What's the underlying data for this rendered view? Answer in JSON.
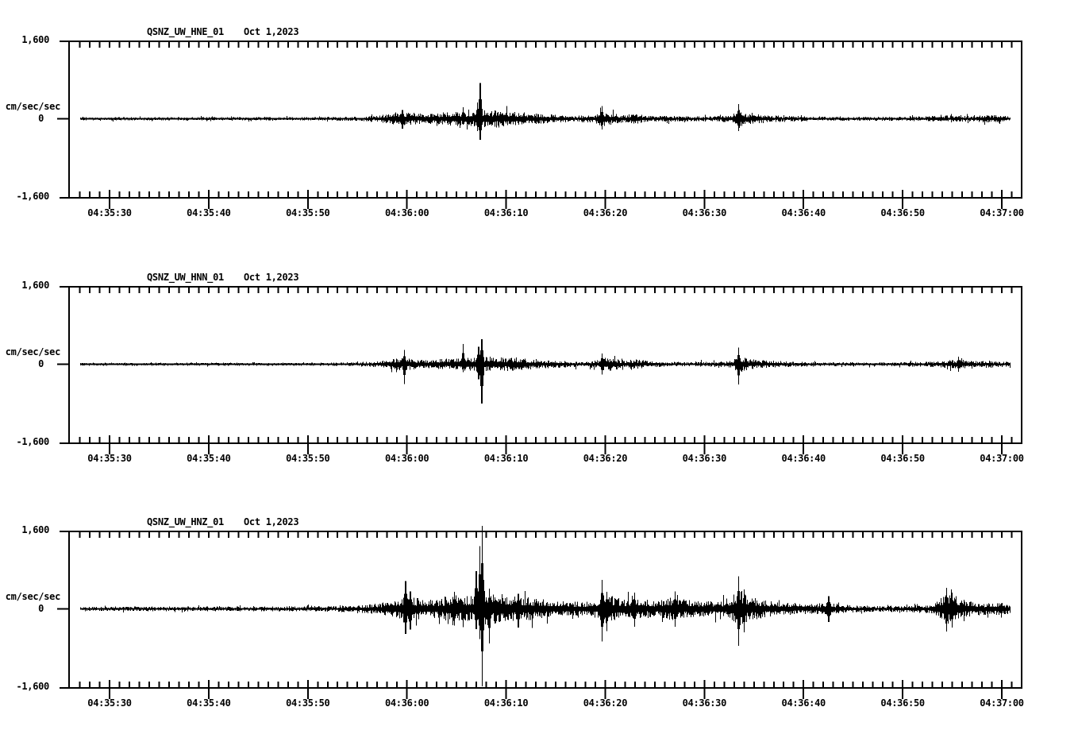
{
  "page": {
    "background": "#ffffff",
    "ink": "#000000"
  },
  "chart_data": [
    {
      "type": "line",
      "subtype": "seismogram",
      "station": "QSNZ_UW_HNE_01",
      "date": "Oct 1,2023",
      "units": "cm/sec/sec",
      "y_labels": {
        "top": "1,600",
        "zero": "0",
        "bottom": "-1,600"
      },
      "ylim": [
        -1600,
        1600
      ],
      "x_tick_labels": [
        "04:35:30",
        "04:35:40",
        "04:35:50",
        "04:36:00",
        "04:36:10",
        "04:36:20",
        "04:36:30",
        "04:36:40",
        "04:36:50",
        "04:37:00"
      ],
      "x_minor_tick_seconds": 1,
      "x_major_tick_seconds": 10,
      "time_window": {
        "start": "04:35:27",
        "end": "04:37:01"
      },
      "seed": 11,
      "envelope_t_amp": [
        [
          27,
          33
        ],
        [
          50,
          35
        ],
        [
          54,
          40
        ],
        [
          56,
          55
        ],
        [
          58,
          95
        ],
        [
          59.4,
          160
        ],
        [
          60.3,
          130
        ],
        [
          61.5,
          102
        ],
        [
          63,
          115
        ],
        [
          64.6,
          150
        ],
        [
          65.7,
          138
        ],
        [
          66.6,
          152
        ],
        [
          67.3,
          205
        ],
        [
          68.2,
          172
        ],
        [
          69.4,
          182
        ],
        [
          70.6,
          148
        ],
        [
          72,
          125
        ],
        [
          73.5,
          105
        ],
        [
          75,
          85
        ],
        [
          77,
          66
        ],
        [
          78.8,
          76
        ],
        [
          79.6,
          172
        ],
        [
          80.7,
          112
        ],
        [
          81.9,
          76
        ],
        [
          82.9,
          108
        ],
        [
          84.1,
          76
        ],
        [
          85.6,
          58
        ],
        [
          87,
          62
        ],
        [
          88.6,
          50
        ],
        [
          90.6,
          56
        ],
        [
          92.7,
          76
        ],
        [
          93.4,
          195
        ],
        [
          94.4,
          108
        ],
        [
          95.8,
          88
        ],
        [
          97,
          72
        ],
        [
          99,
          58
        ],
        [
          101,
          50
        ],
        [
          103,
          46
        ],
        [
          106,
          40
        ],
        [
          109,
          44
        ],
        [
          112,
          54
        ],
        [
          114,
          66
        ],
        [
          115.3,
          72
        ],
        [
          116.5,
          62
        ],
        [
          117.6,
          68
        ],
        [
          118.6,
          82
        ],
        [
          119.6,
          70
        ],
        [
          120.6,
          58
        ],
        [
          121,
          46
        ]
      ],
      "spikes": [
        {
          "t": 59.5,
          "up": 175,
          "down": 205
        },
        {
          "t": 65.62,
          "up": 235,
          "down": 125
        },
        {
          "t": 67.1,
          "up": 330,
          "down": 250
        },
        {
          "t": 67.35,
          "up": 730,
          "down": 430
        },
        {
          "t": 79.62,
          "up": 258,
          "down": 222
        },
        {
          "t": 93.42,
          "up": 302,
          "down": 252
        }
      ]
    },
    {
      "type": "line",
      "subtype": "seismogram",
      "station": "QSNZ_UW_HNN_01",
      "date": "Oct 1,2023",
      "units": "cm/sec/sec",
      "y_labels": {
        "top": "1,600",
        "zero": "0",
        "bottom": "-1,600"
      },
      "ylim": [
        -1600,
        1600
      ],
      "x_tick_labels": [
        "04:35:30",
        "04:35:40",
        "04:35:50",
        "04:36:00",
        "04:36:10",
        "04:36:20",
        "04:36:30",
        "04:36:40",
        "04:36:50",
        "04:37:00"
      ],
      "x_minor_tick_seconds": 1,
      "x_major_tick_seconds": 10,
      "time_window": {
        "start": "04:35:27",
        "end": "04:37:01"
      },
      "seed": 22,
      "envelope_t_amp": [
        [
          27,
          30
        ],
        [
          50,
          32
        ],
        [
          54,
          38
        ],
        [
          56,
          50
        ],
        [
          58,
          86
        ],
        [
          59.5,
          148
        ],
        [
          60.4,
          116
        ],
        [
          62,
          96
        ],
        [
          63.5,
          112
        ],
        [
          65,
          132
        ],
        [
          66.2,
          140
        ],
        [
          67.4,
          182
        ],
        [
          68.3,
          164
        ],
        [
          69.5,
          154
        ],
        [
          71,
          126
        ],
        [
          72.5,
          112
        ],
        [
          74,
          88
        ],
        [
          76,
          66
        ],
        [
          78,
          56
        ],
        [
          79.3,
          86
        ],
        [
          79.9,
          168
        ],
        [
          81,
          112
        ],
        [
          82,
          72
        ],
        [
          83,
          108
        ],
        [
          84.2,
          72
        ],
        [
          86,
          52
        ],
        [
          88,
          46
        ],
        [
          90.5,
          56
        ],
        [
          92.8,
          68
        ],
        [
          93.5,
          200
        ],
        [
          94.4,
          112
        ],
        [
          95.8,
          86
        ],
        [
          97,
          70
        ],
        [
          99,
          56
        ],
        [
          101,
          46
        ],
        [
          103.5,
          40
        ],
        [
          106,
          38
        ],
        [
          109,
          42
        ],
        [
          112,
          50
        ],
        [
          114,
          70
        ],
        [
          115.3,
          96
        ],
        [
          116.4,
          84
        ],
        [
          117.5,
          68
        ],
        [
          118.6,
          72
        ],
        [
          119.6,
          62
        ],
        [
          120.6,
          56
        ],
        [
          121,
          44
        ]
      ],
      "spikes": [
        {
          "t": 59.68,
          "up": 295,
          "down": 405
        },
        {
          "t": 65.62,
          "up": 415,
          "down": 165
        },
        {
          "t": 67.2,
          "up": 355,
          "down": 305
        },
        {
          "t": 67.52,
          "up": 515,
          "down": 805
        },
        {
          "t": 79.66,
          "up": 218,
          "down": 212
        },
        {
          "t": 93.42,
          "up": 338,
          "down": 418
        },
        {
          "t": 115.6,
          "up": 155,
          "down": 152
        }
      ]
    },
    {
      "type": "line",
      "subtype": "seismogram",
      "station": "QSNZ_UW_HNZ_01",
      "date": "Oct 1,2023",
      "units": "cm/sec/sec",
      "y_labels": {
        "top": "1,600",
        "zero": "0",
        "bottom": "-1,600"
      },
      "ylim": [
        -1600,
        1600
      ],
      "x_tick_labels": [
        "04:35:30",
        "04:35:40",
        "04:35:50",
        "04:36:00",
        "04:36:10",
        "04:36:20",
        "04:36:30",
        "04:36:40",
        "04:36:50",
        "04:37:00"
      ],
      "x_minor_tick_seconds": 1,
      "x_major_tick_seconds": 10,
      "time_window": {
        "start": "04:35:27",
        "end": "04:37:01"
      },
      "seed": 33,
      "envelope_t_amp": [
        [
          27,
          45
        ],
        [
          46,
          48
        ],
        [
          50,
          55
        ],
        [
          53,
          62
        ],
        [
          55,
          82
        ],
        [
          57,
          112
        ],
        [
          58.8,
          172
        ],
        [
          59.7,
          292
        ],
        [
          60.7,
          238
        ],
        [
          62,
          188
        ],
        [
          63.3,
          208
        ],
        [
          64.6,
          288
        ],
        [
          65.7,
          248
        ],
        [
          66.6,
          268
        ],
        [
          67.5,
          392
        ],
        [
          68.4,
          332
        ],
        [
          69.6,
          288
        ],
        [
          71,
          262
        ],
        [
          72.5,
          232
        ],
        [
          74,
          200
        ],
        [
          76,
          162
        ],
        [
          78,
          142
        ],
        [
          79.2,
          208
        ],
        [
          79.7,
          388
        ],
        [
          80.8,
          252
        ],
        [
          82,
          188
        ],
        [
          82.9,
          268
        ],
        [
          84.2,
          188
        ],
        [
          85.6,
          178
        ],
        [
          87,
          268
        ],
        [
          88.2,
          188
        ],
        [
          90,
          154
        ],
        [
          92.5,
          178
        ],
        [
          93.4,
          432
        ],
        [
          94.4,
          258
        ],
        [
          95.8,
          188
        ],
        [
          97,
          154
        ],
        [
          99,
          124
        ],
        [
          101,
          94
        ],
        [
          102.5,
          148
        ],
        [
          103.6,
          94
        ],
        [
          105,
          74
        ],
        [
          108,
          64
        ],
        [
          111,
          74
        ],
        [
          113,
          94
        ],
        [
          114.3,
          332
        ],
        [
          115.4,
          258
        ],
        [
          116.6,
          158
        ],
        [
          118,
          124
        ],
        [
          120,
          134
        ],
        [
          121,
          96
        ]
      ],
      "spikes": [
        {
          "t": 59.82,
          "up": 568,
          "down": 508
        },
        {
          "t": 60.3,
          "up": 355,
          "down": 425
        },
        {
          "t": 64.72,
          "up": 348,
          "down": 338
        },
        {
          "t": 66.95,
          "up": 772,
          "down": 415
        },
        {
          "t": 67.3,
          "up": 1285,
          "down": 615
        },
        {
          "t": 67.56,
          "up": 1700,
          "down": 1580
        },
        {
          "t": 68.28,
          "up": 415,
          "down": 705
        },
        {
          "t": 71.2,
          "up": 305,
          "down": 385
        },
        {
          "t": 79.62,
          "up": 592,
          "down": 662
        },
        {
          "t": 80.1,
          "up": 352,
          "down": 455
        },
        {
          "t": 82.9,
          "up": 332,
          "down": 362
        },
        {
          "t": 87.0,
          "up": 358,
          "down": 368
        },
        {
          "t": 93.42,
          "up": 668,
          "down": 758
        },
        {
          "t": 94.0,
          "up": 402,
          "down": 482
        },
        {
          "t": 102.5,
          "up": 258,
          "down": 268
        },
        {
          "t": 114.42,
          "up": 428,
          "down": 462
        },
        {
          "t": 114.95,
          "up": 332,
          "down": 382
        }
      ]
    }
  ]
}
